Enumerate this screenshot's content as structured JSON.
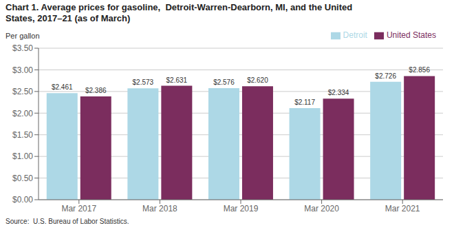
{
  "chart_data": {
    "type": "bar",
    "title": "Chart 1. Average prices for gasoline,  Detroit-Warren-Dearborn, MI, and the United\nStates, 2017–21 (as of March)",
    "ylabel": "Per gallon",
    "source": "Source:  U.S. Bureau of Labor Statistics.",
    "categories": [
      "Mar 2017",
      "Mar 2018",
      "Mar 2019",
      "Mar 2020",
      "Mar 2021"
    ],
    "series": [
      {
        "name": "Detroit",
        "color": "#add8e6",
        "values": [
          2.461,
          2.573,
          2.576,
          2.117,
          2.726
        ],
        "value_labels": [
          "$2.461",
          "$2.573",
          "$2.576",
          "$2.117",
          "$2.726"
        ]
      },
      {
        "name": "United States",
        "color": "#7b2d5e",
        "values": [
          2.386,
          2.631,
          2.62,
          2.334,
          2.856
        ],
        "value_labels": [
          "$2.386",
          "$2.631",
          "$2.620",
          "$2.334",
          "$2.856"
        ]
      }
    ],
    "ylim": [
      0,
      3.5
    ],
    "yticks": [
      {
        "value": 0.0,
        "label": "$0.00"
      },
      {
        "value": 0.5,
        "label": "$0.50"
      },
      {
        "value": 1.0,
        "label": "$1.00"
      },
      {
        "value": 1.5,
        "label": "$1.50"
      },
      {
        "value": 2.0,
        "label": "$2.00"
      },
      {
        "value": 2.5,
        "label": "$2.50"
      },
      {
        "value": 3.0,
        "label": "$3.00"
      },
      {
        "value": 3.5,
        "label": "$3.50"
      }
    ],
    "grid": true,
    "legend": "upper right",
    "data_labels": true
  }
}
